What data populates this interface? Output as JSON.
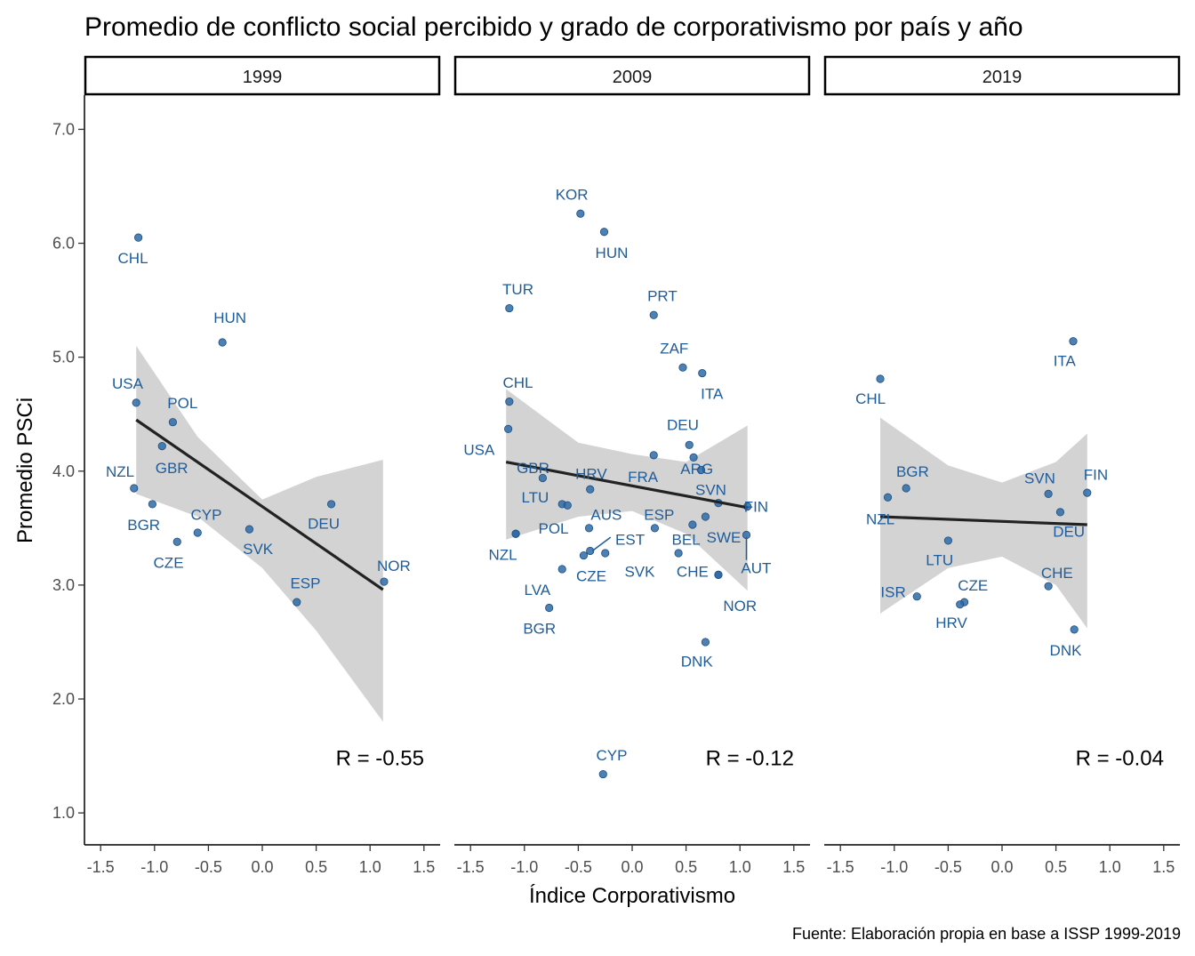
{
  "chart_data": {
    "type": "scatter",
    "title": "Promedio de conflicto social percibido y grado de corporativismo por país y año",
    "xlabel": "Índice Corporativismo",
    "ylabel": "Promedio PSCi",
    "caption": "Fuente: Elaboración propia en base a ISSP 1999-2019",
    "xlim": [
      -1.65,
      1.65
    ],
    "ylim": [
      0.72,
      7.3
    ],
    "x_ticks": [
      -1.5,
      -1.0,
      -0.5,
      0.0,
      0.5,
      1.0,
      1.5
    ],
    "x_tick_labels": [
      "-1.5",
      "-1.0",
      "-0.5",
      "0.0",
      "0.5",
      "1.0",
      "1.5"
    ],
    "y_ticks": [
      1,
      2,
      3,
      4,
      5,
      6,
      7
    ],
    "y_tick_labels": [
      "1.0",
      "2.0",
      "3.0",
      "4.0",
      "5.0",
      "6.0",
      "7.0"
    ],
    "grid": false,
    "point_color": "#2e6aa6",
    "label_color": "#1f5c99",
    "ribbon_color": "#d3d3d3",
    "line_color": "#222222",
    "panels": [
      {
        "year": "1999",
        "r_label": "R = -0.55",
        "fit": {
          "x": [
            -1.17,
            1.12
          ],
          "y": [
            4.45,
            2.96
          ]
        },
        "ribbon": {
          "x": [
            -1.17,
            -0.6,
            0.0,
            0.5,
            1.12
          ],
          "lower": [
            3.8,
            3.6,
            3.15,
            2.6,
            1.8
          ],
          "upper": [
            5.1,
            4.3,
            3.75,
            3.95,
            4.1
          ]
        },
        "points": [
          {
            "label": "CHL",
            "x": -1.15,
            "y": 6.05,
            "lx": -1.2,
            "ly": 5.87
          },
          {
            "label": "HUN",
            "x": -0.37,
            "y": 5.13,
            "lx": -0.3,
            "ly": 5.35
          },
          {
            "label": "USA",
            "x": -1.17,
            "y": 4.6,
            "lx": -1.25,
            "ly": 4.77
          },
          {
            "label": "POL",
            "x": -0.83,
            "y": 4.43,
            "lx": -0.74,
            "ly": 4.6
          },
          {
            "label": "GBR",
            "x": -0.93,
            "y": 4.22,
            "lx": -0.84,
            "ly": 4.03
          },
          {
            "label": "NZL",
            "x": -1.19,
            "y": 3.85,
            "lx": -1.32,
            "ly": 4.0
          },
          {
            "label": "BGR",
            "x": -1.02,
            "y": 3.71,
            "lx": -1.1,
            "ly": 3.53
          },
          {
            "label": "CYP",
            "x": -0.6,
            "y": 3.46,
            "lx": -0.52,
            "ly": 3.62
          },
          {
            "label": "CZE",
            "x": -0.79,
            "y": 3.38,
            "lx": -0.87,
            "ly": 3.2
          },
          {
            "label": "SVK",
            "x": -0.12,
            "y": 3.49,
            "lx": -0.04,
            "ly": 3.32
          },
          {
            "label": "DEU",
            "x": 0.64,
            "y": 3.71,
            "lx": 0.57,
            "ly": 3.54
          },
          {
            "label": "NOR",
            "x": 1.13,
            "y": 3.03,
            "lx": 1.22,
            "ly": 3.17
          },
          {
            "label": "ESP",
            "x": 0.32,
            "y": 2.85,
            "lx": 0.4,
            "ly": 3.02
          }
        ]
      },
      {
        "year": "2009",
        "r_label": "R = -0.12",
        "fit": {
          "x": [
            -1.17,
            1.07
          ],
          "y": [
            4.08,
            3.68
          ]
        },
        "ribbon": {
          "x": [
            -1.17,
            -0.5,
            0.0,
            0.5,
            1.07
          ],
          "lower": [
            3.4,
            3.6,
            3.65,
            3.45,
            2.95
          ],
          "upper": [
            4.72,
            4.25,
            4.15,
            4.08,
            4.4
          ]
        },
        "points": [
          {
            "label": "KOR",
            "x": -0.48,
            "y": 6.26,
            "lx": -0.56,
            "ly": 6.43
          },
          {
            "label": "HUN",
            "x": -0.26,
            "y": 6.1,
            "lx": -0.19,
            "ly": 5.92
          },
          {
            "label": "TUR",
            "x": -1.14,
            "y": 5.43,
            "lx": -1.06,
            "ly": 5.6
          },
          {
            "label": "PRT",
            "x": 0.2,
            "y": 5.37,
            "lx": 0.28,
            "ly": 5.54
          },
          {
            "label": "ZAF",
            "x": 0.47,
            "y": 4.91,
            "lx": 0.39,
            "ly": 5.08
          },
          {
            "label": "ITA",
            "x": 0.65,
            "y": 4.86,
            "lx": 0.74,
            "ly": 4.68
          },
          {
            "label": "CHL",
            "x": -1.14,
            "y": 4.61,
            "lx": -1.06,
            "ly": 4.78
          },
          {
            "label": "USA",
            "x": -1.15,
            "y": 4.37,
            "lx": -1.42,
            "ly": 4.19
          },
          {
            "label": "DEU",
            "x": 0.53,
            "y": 4.23,
            "lx": 0.47,
            "ly": 4.41
          },
          {
            "label": "ARG",
            "x": 0.57,
            "y": 4.12,
            "lx": 0.6,
            "ly": 4.02
          },
          {
            "label": "GBR",
            "x": -0.83,
            "y": 3.94,
            "lx": -0.92,
            "ly": 4.03
          },
          {
            "label": "HRV",
            "x": -0.39,
            "y": 3.84,
            "lx": -0.38,
            "ly": 3.98
          },
          {
            "label": "FRA",
            "x": 0.2,
            "y": 4.14,
            "lx": 0.1,
            "ly": 3.95
          },
          {
            "label": "ARG2",
            "x": 0.64,
            "y": 4.01
          },
          {
            "label": "LTU",
            "x": -0.65,
            "y": 3.71,
            "lx": -0.9,
            "ly": 3.77
          },
          {
            "label": "SVN",
            "x": 0.8,
            "y": 3.72,
            "lx": 0.73,
            "ly": 3.84
          },
          {
            "label": "FIN",
            "x": 1.07,
            "y": 3.69,
            "lx": 1.15,
            "ly": 3.69
          },
          {
            "label": "AUS",
            "x": -0.4,
            "y": 3.5,
            "lx": -0.24,
            "ly": 3.62
          },
          {
            "label": "ESP",
            "x": 0.21,
            "y": 3.5,
            "lx": 0.25,
            "ly": 3.62
          },
          {
            "label": "LTU2",
            "x": -0.6,
            "y": 3.7
          },
          {
            "label": "SWE",
            "x": 0.68,
            "y": 3.6,
            "lx": 0.85,
            "ly": 3.42
          },
          {
            "label": "BEL",
            "x": 0.56,
            "y": 3.53,
            "lx": 0.5,
            "ly": 3.4
          },
          {
            "label": "POL",
            "x": -1.08,
            "y": 3.45,
            "lx": -0.73,
            "ly": 3.5
          },
          {
            "label": "AUT",
            "x": 1.06,
            "y": 3.44,
            "lx": 1.15,
            "ly": 3.15
          },
          {
            "label": "NZL",
            "x": -1.08,
            "y": 3.45,
            "lx": -1.2,
            "ly": 3.27
          },
          {
            "label": "EST",
            "x": -0.25,
            "y": 3.28,
            "lx": -0.02,
            "ly": 3.4
          },
          {
            "label": "SVK",
            "x": 0.43,
            "y": 3.28,
            "lx": 0.07,
            "ly": 3.12
          },
          {
            "label": "CZE",
            "x": -0.45,
            "y": 3.26,
            "lx": -0.38,
            "ly": 3.08
          },
          {
            "label": "CZE2",
            "x": -0.39,
            "y": 3.3
          },
          {
            "label": "CHE",
            "x": 0.8,
            "y": 3.09,
            "lx": 0.56,
            "ly": 3.12
          },
          {
            "label": "NOR",
            "x": 0.8,
            "y": 3.09,
            "lx": 1.0,
            "ly": 2.82
          },
          {
            "label": "LVA",
            "x": -0.65,
            "y": 3.14,
            "lx": -0.88,
            "ly": 2.96
          },
          {
            "label": "BGR",
            "x": -0.77,
            "y": 2.8,
            "lx": -0.86,
            "ly": 2.62
          },
          {
            "label": "DNK",
            "x": 0.68,
            "y": 2.5,
            "lx": 0.6,
            "ly": 2.33
          },
          {
            "label": "CYP",
            "x": -0.27,
            "y": 1.34,
            "lx": -0.19,
            "ly": 1.51
          }
        ],
        "segments": [
          {
            "x1": -0.37,
            "y1": 3.3,
            "x2": -0.2,
            "y2": 3.42
          },
          {
            "x1": 1.06,
            "y1": 3.42,
            "x2": 1.06,
            "y2": 3.22
          }
        ]
      },
      {
        "year": "2019",
        "r_label": "R = -0.04",
        "fit": {
          "x": [
            -1.13,
            0.79
          ],
          "y": [
            3.6,
            3.53
          ]
        },
        "ribbon": {
          "x": [
            -1.13,
            -0.5,
            0.0,
            0.5,
            0.79
          ],
          "lower": [
            2.75,
            3.15,
            3.25,
            3.0,
            2.62
          ],
          "upper": [
            4.47,
            4.05,
            3.9,
            4.08,
            4.33
          ]
        },
        "points": [
          {
            "label": "ITA",
            "x": 0.66,
            "y": 5.14,
            "lx": 0.58,
            "ly": 4.97
          },
          {
            "label": "CHL",
            "x": -1.13,
            "y": 4.81,
            "lx": -1.22,
            "ly": 4.64
          },
          {
            "label": "BGR",
            "x": -0.89,
            "y": 3.85,
            "lx": -0.83,
            "ly": 4.0
          },
          {
            "label": "SVN",
            "x": 0.43,
            "y": 3.8,
            "lx": 0.35,
            "ly": 3.94
          },
          {
            "label": "FIN",
            "x": 0.79,
            "y": 3.81,
            "lx": 0.87,
            "ly": 3.97
          },
          {
            "label": "NZL",
            "x": -1.06,
            "y": 3.77,
            "lx": -1.13,
            "ly": 3.58
          },
          {
            "label": "DEU",
            "x": 0.54,
            "y": 3.64,
            "lx": 0.62,
            "ly": 3.47
          },
          {
            "label": "LTU",
            "x": -0.5,
            "y": 3.39,
            "lx": -0.58,
            "ly": 3.22
          },
          {
            "label": "CHE",
            "x": 0.43,
            "y": 2.99,
            "lx": 0.51,
            "ly": 3.11
          },
          {
            "label": "ISR",
            "x": -0.79,
            "y": 2.9,
            "lx": -1.01,
            "ly": 2.94
          },
          {
            "label": "CZE",
            "x": -0.35,
            "y": 2.85,
            "lx": -0.27,
            "ly": 3.0
          },
          {
            "label": "HRV",
            "x": -0.39,
            "y": 2.83,
            "lx": -0.47,
            "ly": 2.67
          },
          {
            "label": "DNK",
            "x": 0.67,
            "y": 2.61,
            "lx": 0.59,
            "ly": 2.43
          }
        ]
      }
    ]
  }
}
